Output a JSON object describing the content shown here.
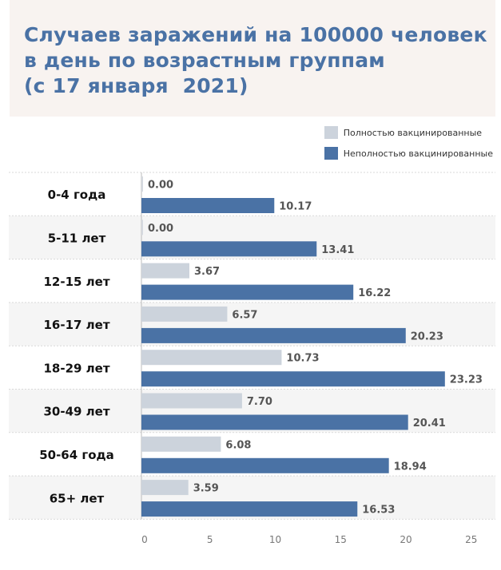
{
  "chart_data": {
    "type": "bar",
    "orientation": "horizontal",
    "title_lines": [
      "Случаев заражений на 100000 человек",
      "в день по возрастным группам",
      "(с 17 января  2021)"
    ],
    "categories": [
      "0-4 года",
      "5-11 лет",
      "12-15 лет",
      "16-17 лет",
      "18-29 лет",
      "30-49 лет",
      "50-64 года",
      "65+ лет"
    ],
    "series": [
      {
        "name": "Полностью вакцинированные",
        "color": "#ccd3dc",
        "values": [
          0.0,
          0.0,
          3.67,
          6.57,
          10.73,
          7.7,
          6.08,
          3.59
        ],
        "labels": [
          "0.00",
          "0.00",
          "3.67",
          "6.57",
          "10.73",
          "7.70",
          "6.08",
          "3.59"
        ]
      },
      {
        "name": "Неполностью вакцинированные",
        "color": "#4a72a5",
        "values": [
          10.17,
          13.41,
          16.22,
          20.23,
          23.23,
          20.41,
          18.94,
          16.53
        ],
        "labels": [
          "10.17",
          "13.41",
          "16.22",
          "20.23",
          "23.23",
          "20.41",
          "18.94",
          "16.53"
        ]
      }
    ],
    "xlim": [
      0,
      25
    ],
    "xticks": [
      0,
      5,
      10,
      15,
      20,
      25
    ],
    "xtick_labels": [
      "0",
      "5",
      "10",
      "15",
      "20",
      "25"
    ],
    "legend_position": "top-right",
    "row_stripes": true
  }
}
